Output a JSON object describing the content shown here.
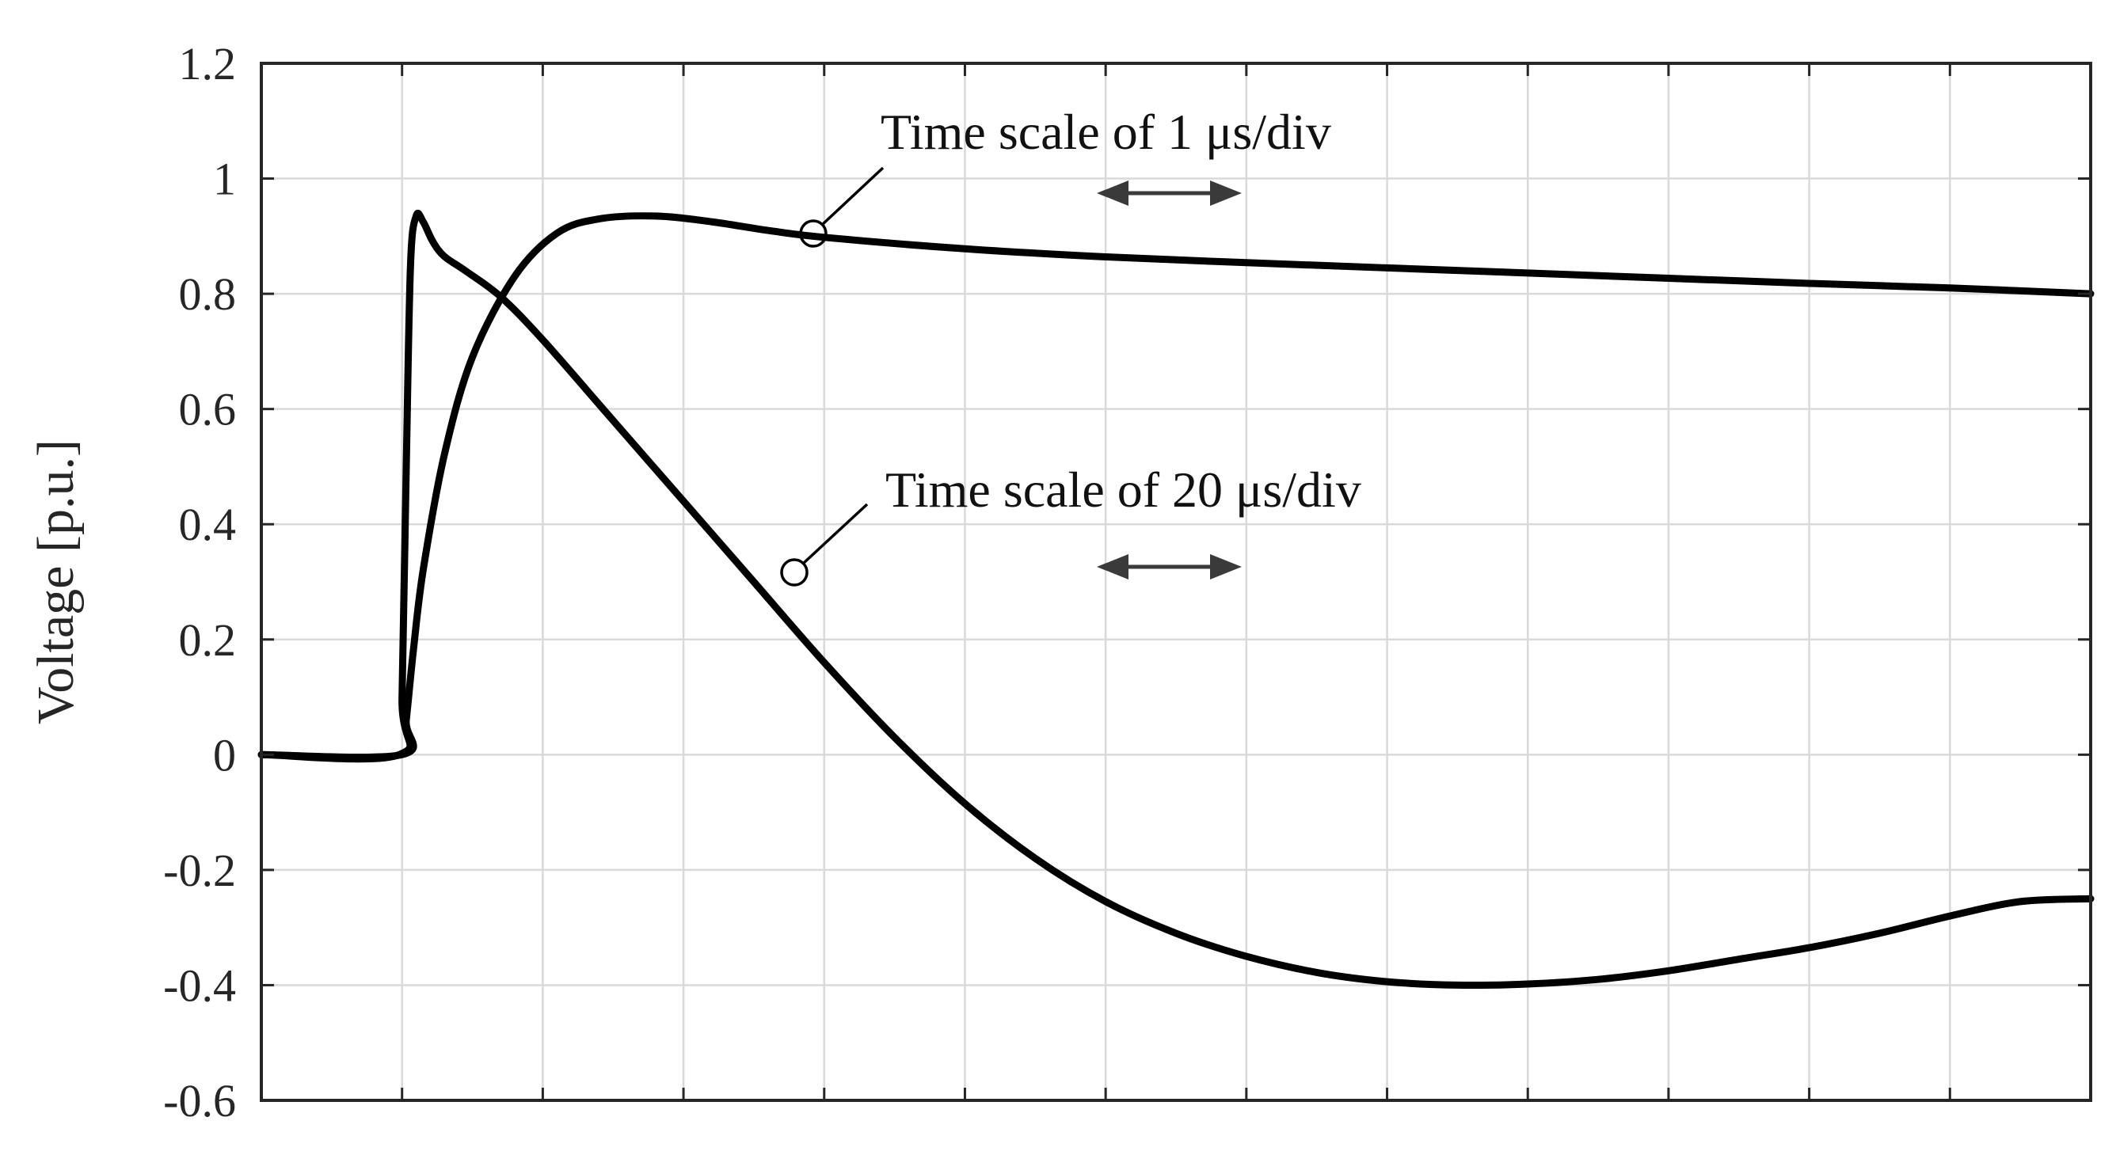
{
  "chart_data": {
    "type": "line",
    "title": "",
    "xlabel": "",
    "ylabel": "Voltage [p.u.]",
    "ylim": [
      -0.6,
      1.2
    ],
    "yticks": [
      "1.2",
      "1",
      "0.8",
      "0.6",
      "0.4",
      "0.2",
      "0",
      "-0.2",
      "-0.4",
      "-0.6"
    ],
    "x_divisions": 13,
    "grid": true,
    "x_tick_labels_shown": false,
    "series": [
      {
        "label": "Time scale of 1 μs/div",
        "color": "#000000",
        "x_div": [
          0,
          1.0,
          1.03,
          1.08,
          1.15,
          1.3,
          1.5,
          1.8,
          2.1,
          2.4,
          2.8,
          3.2,
          3.6,
          4.0,
          5,
          6,
          7,
          8,
          9,
          10,
          11,
          12,
          13
        ],
        "y": [
          0,
          0,
          0.06,
          0.18,
          0.32,
          0.52,
          0.69,
          0.83,
          0.905,
          0.93,
          0.935,
          0.925,
          0.91,
          0.898,
          0.878,
          0.864,
          0.854,
          0.845,
          0.836,
          0.827,
          0.818,
          0.81,
          0.8
        ]
      },
      {
        "label": "Time scale of 20 μs/div",
        "color": "#000000",
        "x_div": [
          0,
          0.98,
          1.0,
          1.03,
          1.06,
          1.1,
          1.15,
          1.22,
          1.3,
          1.45,
          1.7,
          2.0,
          2.5,
          3.0,
          3.5,
          4.0,
          4.5,
          5.0,
          5.5,
          6.0,
          6.5,
          7.0,
          7.5,
          8.0,
          8.5,
          9.0,
          9.5,
          10.0,
          10.5,
          11.0,
          11.5,
          12.0,
          12.5,
          13.0
        ],
        "y": [
          0,
          0,
          0.1,
          0.5,
          0.85,
          0.935,
          0.925,
          0.89,
          0.865,
          0.84,
          0.795,
          0.72,
          0.58,
          0.44,
          0.3,
          0.16,
          0.03,
          -0.085,
          -0.18,
          -0.255,
          -0.31,
          -0.35,
          -0.378,
          -0.394,
          -0.4,
          -0.398,
          -0.39,
          -0.375,
          -0.355,
          -0.335,
          -0.31,
          -0.28,
          -0.255,
          -0.25
        ]
      }
    ],
    "annotations": [
      {
        "text": "Time scale of 1 μs/div",
        "target_series": 0
      },
      {
        "text": "Time scale of 20 μs/div",
        "target_series": 1
      }
    ]
  }
}
